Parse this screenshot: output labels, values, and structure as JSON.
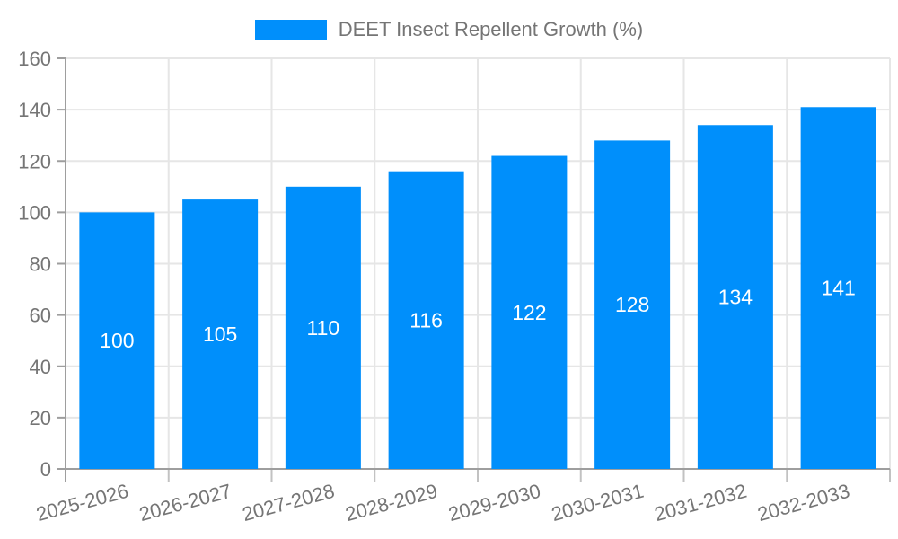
{
  "legend": {
    "label": "DEET Insect Repellent Growth (%)"
  },
  "chart_data": {
    "type": "bar",
    "title": "DEET Insect Repellent Growth (%)",
    "series_name": "DEET Insect Repellent Growth (%)",
    "categories": [
      "2025-2026",
      "2026-2027",
      "2027-2028",
      "2028-2029",
      "2029-2030",
      "2030-2031",
      "2031-2032",
      "2032-2033"
    ],
    "values": [
      100,
      105,
      110,
      116,
      122,
      128,
      134,
      141
    ],
    "data_labels": [
      "100",
      "105",
      "110",
      "116",
      "122",
      "128",
      "134",
      "141"
    ],
    "xlabel": "",
    "ylabel": "",
    "ylim": [
      0,
      160
    ],
    "ytick_step": 20,
    "ytick_labels": [
      "0",
      "20",
      "40",
      "60",
      "80",
      "100",
      "120",
      "140",
      "160"
    ],
    "grid": true,
    "legend_position": "top",
    "colors": {
      "bar": "#008FFB",
      "bar_value_label": "#ffffff",
      "grid_line": "#e6e6e6",
      "axis_line": "#9e9e9e",
      "tick_mark": "#c2c2c2",
      "axis_text": "#757575",
      "legend_text": "#757575",
      "background": "#ffffff"
    }
  }
}
